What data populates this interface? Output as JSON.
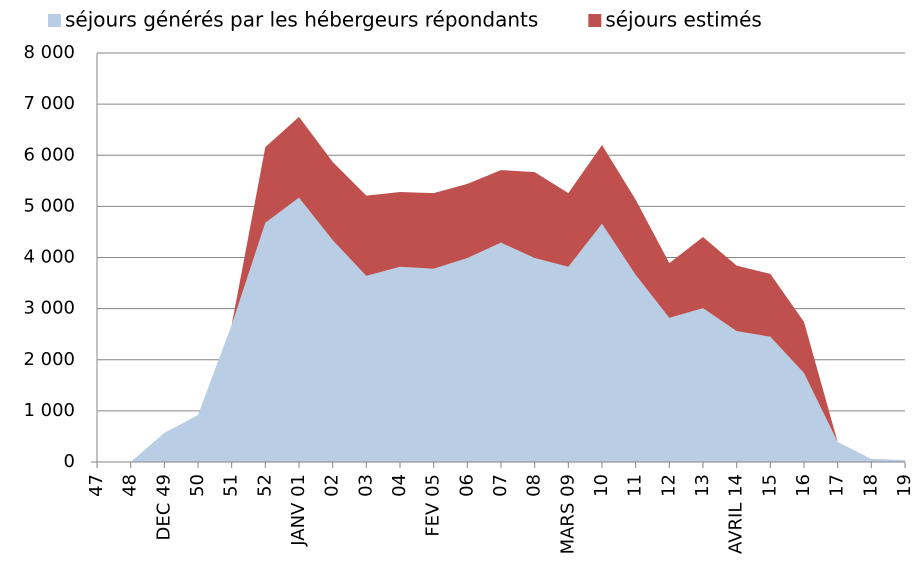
{
  "chart_data": {
    "type": "stacked-area",
    "categories": [
      "47",
      "48",
      "DEC 49",
      "50",
      "51",
      "52",
      "JANV 01",
      "02",
      "03",
      "04",
      "FEV 05",
      "06",
      "07",
      "08",
      "MARS 09",
      "10",
      "11",
      "12",
      "13",
      "AVRIL 14",
      "15",
      "16",
      "17",
      "18",
      "19"
    ],
    "series": [
      {
        "name": "séjours générés par les hébergeurs répondants",
        "color": "#b9cde5",
        "values": [
          null,
          0,
          570,
          920,
          2680,
          4680,
          5170,
          4340,
          3640,
          3820,
          3780,
          3990,
          4290,
          3990,
          3820,
          4660,
          3660,
          2820,
          3010,
          2560,
          2450,
          1740,
          390,
          60,
          40
        ]
      },
      {
        "name": "séjours estimés",
        "color": "#c0504d",
        "values": [
          null,
          0,
          0,
          0,
          0,
          1480,
          1580,
          1530,
          1570,
          1460,
          1480,
          1450,
          1420,
          1680,
          1440,
          1540,
          1470,
          1070,
          1390,
          1280,
          1230,
          1000,
          0,
          0,
          0
        ]
      }
    ],
    "ylim": [
      0,
      8000
    ],
    "yticks": [
      0,
      {
        "value": 1000,
        "label": "1 000"
      },
      {
        "value": 2000,
        "label": "2 000"
      },
      {
        "value": 3000,
        "label": "3 000"
      },
      {
        "value": 4000,
        "label": "4 000"
      },
      {
        "value": 5000,
        "label": "5 000"
      },
      {
        "value": 6000,
        "label": "6 000"
      },
      {
        "value": 7000,
        "label": "7 000"
      },
      {
        "value": 8000,
        "label": "8 000"
      }
    ],
    "grid": true,
    "legend": "top"
  }
}
